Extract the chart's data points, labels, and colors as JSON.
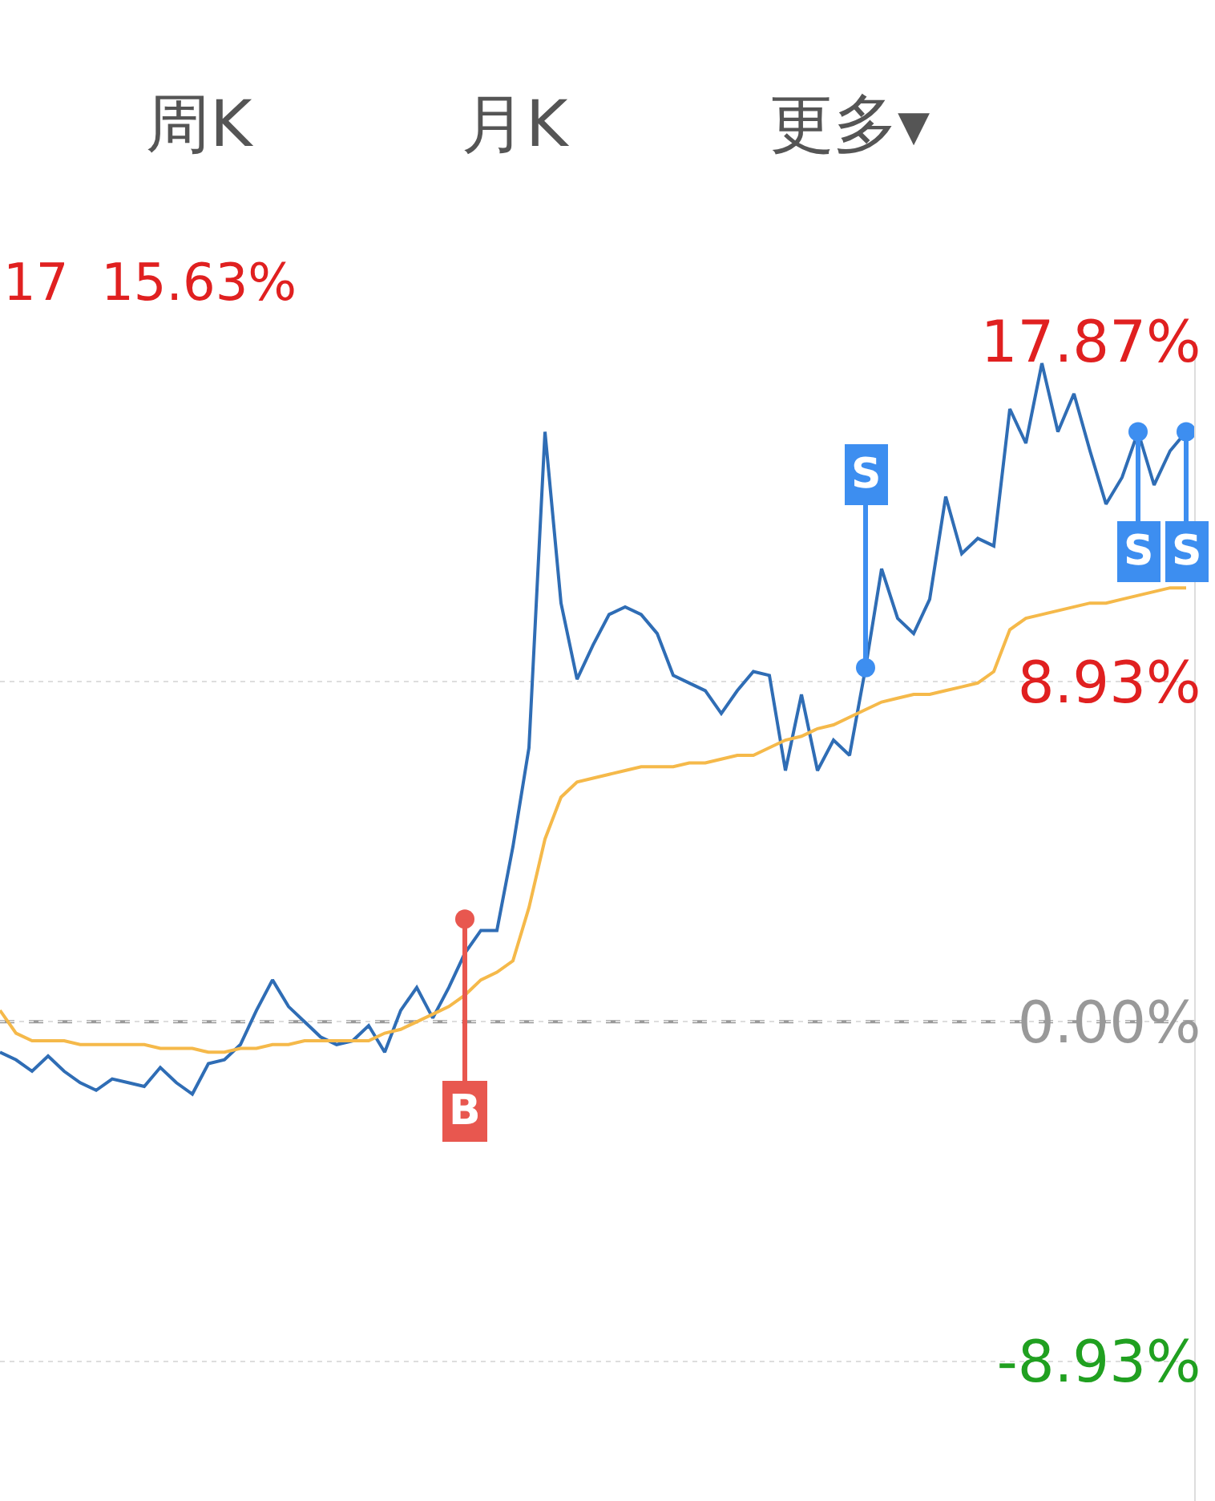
{
  "chart_data": {
    "type": "line",
    "subtitle": "17  15.63%",
    "annotations": [
      "周K",
      "月K",
      "更多▾"
    ],
    "categories": [
      null,
      null,
      null,
      null,
      null,
      null,
      null,
      null,
      null,
      null,
      null,
      null,
      null,
      null,
      null,
      null,
      null,
      null,
      null,
      null,
      null,
      null,
      null,
      null,
      null,
      null,
      null,
      null,
      null,
      null,
      null,
      null,
      null,
      null,
      null,
      null,
      null,
      null,
      null,
      null,
      null,
      null,
      null,
      null,
      null,
      null,
      null,
      null,
      null,
      null,
      null,
      null,
      null,
      null,
      null,
      null,
      null,
      null,
      null,
      null,
      null,
      null,
      null,
      null,
      null,
      null,
      null,
      null,
      null,
      null,
      null,
      null,
      null,
      null,
      null
    ],
    "series": [
      {
        "color": "#2f6db5",
        "values": [
          -0.8,
          -1.0,
          -1.3,
          -0.9,
          -1.3,
          -1.6,
          -1.8,
          -1.5,
          -1.6,
          -1.7,
          -1.2,
          -1.6,
          -1.9,
          -1.1,
          -1.0,
          -0.6,
          0.3,
          1.1,
          0.4,
          0.0,
          -0.4,
          -0.6,
          -0.5,
          -0.1,
          -0.8,
          0.3,
          0.9,
          0.1,
          0.9,
          1.8,
          2.4,
          2.4,
          4.6,
          7.2,
          15.5,
          11.0,
          9.0,
          9.9,
          10.7,
          10.9,
          10.7,
          10.2,
          9.1,
          8.9,
          8.7,
          8.1,
          8.7,
          9.2,
          9.1,
          6.6,
          8.6,
          6.6,
          7.4,
          7.0,
          9.3,
          11.9,
          10.6,
          10.2,
          11.1,
          13.8,
          12.3,
          12.7,
          12.5,
          16.1,
          15.2,
          17.3,
          15.5,
          16.5,
          15.0,
          13.6,
          14.3,
          15.5,
          14.1,
          15.0,
          15.5
        ]
      },
      {
        "color": "#f5b94a",
        "values": [
          0.3,
          -0.3,
          -0.5,
          -0.5,
          -0.5,
          -0.6,
          -0.6,
          -0.6,
          -0.6,
          -0.6,
          -0.7,
          -0.7,
          -0.7,
          -0.8,
          -0.8,
          -0.7,
          -0.7,
          -0.6,
          -0.6,
          -0.5,
          -0.5,
          -0.5,
          -0.5,
          -0.5,
          -0.3,
          -0.2,
          0.0,
          0.2,
          0.4,
          0.7,
          1.1,
          1.3,
          1.6,
          3.0,
          4.8,
          5.9,
          6.3,
          6.4,
          6.5,
          6.6,
          6.7,
          6.7,
          6.7,
          6.8,
          6.8,
          6.9,
          7.0,
          7.0,
          7.2,
          7.4,
          7.5,
          7.7,
          7.8,
          8.0,
          8.2,
          8.4,
          8.5,
          8.6,
          8.6,
          8.7,
          8.8,
          8.9,
          9.2,
          10.3,
          10.6,
          10.7,
          10.8,
          10.9,
          11.0,
          11.0,
          11.1,
          11.2,
          11.3,
          11.4,
          11.4
        ]
      },
      {
        "type": "scatter",
        "marker": "circle",
        "color": "#e8574f",
        "values": [
          null,
          null,
          null,
          null,
          null,
          null,
          null,
          null,
          null,
          null,
          null,
          null,
          null,
          null,
          null,
          null,
          null,
          null,
          null,
          null,
          null,
          null,
          null,
          null,
          null,
          null,
          null,
          null,
          null,
          2.7,
          null,
          null,
          null,
          null,
          null,
          null,
          null,
          null,
          null,
          null,
          null,
          null,
          null,
          null,
          null,
          null,
          null,
          null,
          null,
          null,
          null,
          null,
          null,
          null,
          null,
          null,
          null,
          null,
          null,
          null,
          null,
          null,
          null,
          null,
          null,
          null,
          null,
          null,
          null,
          null,
          null,
          null,
          null,
          null,
          null
        ],
        "value_labels": [
          null,
          null,
          null,
          null,
          null,
          null,
          null,
          null,
          null,
          null,
          null,
          null,
          null,
          null,
          null,
          null,
          null,
          null,
          null,
          null,
          null,
          null,
          null,
          null,
          null,
          null,
          null,
          null,
          null,
          "B",
          null,
          null,
          null,
          null,
          null,
          null,
          null,
          null,
          null,
          null,
          null,
          null,
          null,
          null,
          null,
          null,
          null,
          null,
          null,
          null,
          null,
          null,
          null,
          null,
          null,
          null,
          null,
          null,
          null,
          null,
          null,
          null,
          null,
          null,
          null,
          null,
          null,
          null,
          null,
          null,
          null,
          null,
          null,
          null,
          null
        ]
      },
      {
        "type": "scatter",
        "marker": "circle",
        "color": "#3d8ef0",
        "values": [
          null,
          null,
          null,
          null,
          null,
          null,
          null,
          null,
          null,
          null,
          null,
          null,
          null,
          null,
          null,
          null,
          null,
          null,
          null,
          null,
          null,
          null,
          null,
          null,
          null,
          null,
          null,
          null,
          null,
          null,
          null,
          null,
          null,
          null,
          null,
          null,
          null,
          null,
          null,
          null,
          null,
          null,
          null,
          null,
          null,
          null,
          null,
          null,
          null,
          null,
          null,
          null,
          null,
          null,
          9.3,
          null,
          null,
          null,
          null,
          null,
          null,
          null,
          null,
          null,
          null,
          null,
          null,
          null,
          null,
          null,
          null,
          15.5,
          null,
          null,
          15.5
        ],
        "value_labels": [
          null,
          null,
          null,
          null,
          null,
          null,
          null,
          null,
          null,
          null,
          null,
          null,
          null,
          null,
          null,
          null,
          null,
          null,
          null,
          null,
          null,
          null,
          null,
          null,
          null,
          null,
          null,
          null,
          null,
          null,
          null,
          null,
          null,
          null,
          null,
          null,
          null,
          null,
          null,
          null,
          null,
          null,
          null,
          null,
          null,
          null,
          null,
          null,
          null,
          null,
          null,
          null,
          null,
          null,
          "S",
          null,
          null,
          null,
          null,
          null,
          null,
          null,
          null,
          null,
          null,
          null,
          null,
          null,
          null,
          null,
          null,
          "S",
          null,
          null,
          "S"
        ]
      }
    ],
    "ylim": [
      -12.59,
      17.87
    ],
    "yticks": [
      {
        "value": 17.87,
        "label": "17.87%"
      },
      {
        "value": 8.93,
        "label": "8.93%"
      },
      {
        "value": 0,
        "label": "0.00%"
      },
      {
        "value": -8.93,
        "label": "-8.93%"
      }
    ],
    "ref_lines": [
      {
        "axis": "y",
        "value": 0,
        "color": "#999999",
        "line_style": "dashed"
      }
    ],
    "grid": "y",
    "marker": "none",
    "tick_labels": "y"
  }
}
